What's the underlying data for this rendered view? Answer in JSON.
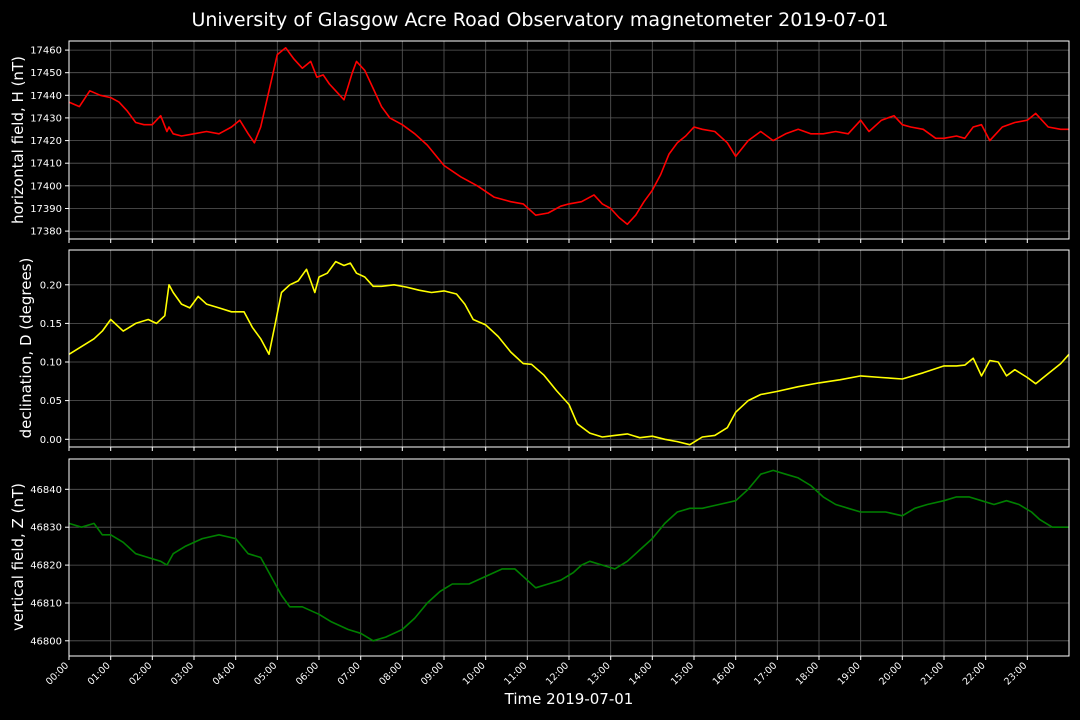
{
  "title": "University of Glasgow Acre Road Observatory magnetometer 2019-07-01",
  "xlabel": "Time 2019-07-01",
  "colors": {
    "background": "#000000",
    "grid": "#5a5a5a",
    "axes": "#ffffff"
  },
  "chart_data": [
    {
      "type": "line",
      "ylabel": "horizontal field, H (nT)",
      "color": "#ff0000",
      "xlim": [
        0,
        24
      ],
      "ylim": [
        17376.5,
        17464
      ],
      "yticks": [
        17380,
        17390,
        17400,
        17410,
        17420,
        17430,
        17440,
        17450,
        17460
      ],
      "grid": true,
      "x": [
        0,
        0.25,
        0.5,
        0.75,
        1.0,
        1.2,
        1.4,
        1.6,
        1.8,
        2.0,
        2.2,
        2.35,
        2.4,
        2.5,
        2.7,
        3.0,
        3.3,
        3.6,
        3.9,
        4.1,
        4.3,
        4.45,
        4.6,
        4.8,
        5.0,
        5.2,
        5.4,
        5.6,
        5.8,
        5.95,
        6.1,
        6.25,
        6.4,
        6.6,
        6.8,
        6.9,
        7.1,
        7.3,
        7.5,
        7.7,
        8.0,
        8.3,
        8.6,
        9.0,
        9.4,
        9.8,
        10.2,
        10.6,
        10.9,
        11.2,
        11.5,
        11.8,
        12.0,
        12.3,
        12.6,
        12.8,
        13.0,
        13.2,
        13.4,
        13.6,
        13.8,
        14.0,
        14.2,
        14.4,
        14.6,
        14.8,
        15.0,
        15.2,
        15.5,
        15.8,
        16.0,
        16.3,
        16.6,
        16.9,
        17.2,
        17.5,
        17.8,
        18.1,
        18.4,
        18.7,
        19.0,
        19.2,
        19.5,
        19.8,
        20.0,
        20.2,
        20.5,
        20.8,
        21.0,
        21.3,
        21.5,
        21.7,
        21.9,
        22.1,
        22.4,
        22.7,
        23.0,
        23.2,
        23.5,
        23.8,
        24.0
      ],
      "y": [
        17437,
        17435,
        17442,
        17440,
        17439,
        17437,
        17433,
        17428,
        17427,
        17427,
        17431,
        17424,
        17426,
        17423,
        17422,
        17423,
        17424,
        17423,
        17426,
        17429,
        17423,
        17419,
        17426,
        17442,
        17458,
        17461,
        17456,
        17452,
        17455,
        17448,
        17449,
        17445,
        17442,
        17438,
        17450,
        17455,
        17451,
        17443,
        17435,
        17430,
        17427,
        17423,
        17418,
        17409,
        17404,
        17400,
        17395,
        17393,
        17392,
        17387,
        17388,
        17391,
        17392,
        17393,
        17396,
        17392,
        17390,
        17386,
        17383,
        17387,
        17393,
        17398,
        17405,
        17414,
        17419,
        17422,
        17426,
        17425,
        17424,
        17419,
        17413,
        17420,
        17424,
        17420,
        17423,
        17425,
        17423,
        17423,
        17424,
        17423,
        17429,
        17424,
        17429,
        17431,
        17427,
        17426,
        17425,
        17421,
        17421,
        17422,
        17421,
        17426,
        17427,
        17420,
        17426,
        17428,
        17429,
        17432,
        17426,
        17425,
        17425
      ]
    },
    {
      "type": "line",
      "ylabel": "declination, D (degrees)",
      "color": "#ffff00",
      "xlim": [
        0,
        24
      ],
      "ylim": [
        -0.01,
        0.245
      ],
      "yticks": [
        "0.00",
        "0.05",
        "0.10",
        "0.15",
        "0.20"
      ],
      "grid": true,
      "x": [
        0,
        0.3,
        0.6,
        0.8,
        1.0,
        1.3,
        1.6,
        1.9,
        2.1,
        2.3,
        2.4,
        2.5,
        2.7,
        2.9,
        3.1,
        3.3,
        3.6,
        3.9,
        4.2,
        4.4,
        4.6,
        4.8,
        4.95,
        5.1,
        5.3,
        5.5,
        5.7,
        5.9,
        6.0,
        6.2,
        6.4,
        6.6,
        6.75,
        6.9,
        7.1,
        7.3,
        7.5,
        7.8,
        8.1,
        8.4,
        8.7,
        9.0,
        9.3,
        9.5,
        9.7,
        10.0,
        10.3,
        10.6,
        10.9,
        11.1,
        11.4,
        11.7,
        12.0,
        12.2,
        12.5,
        12.8,
        13.1,
        13.4,
        13.7,
        14.0,
        14.3,
        14.6,
        14.9,
        15.2,
        15.5,
        15.8,
        16.0,
        16.3,
        16.6,
        17.0,
        17.5,
        18.0,
        18.5,
        19.0,
        19.5,
        20.0,
        20.5,
        21.0,
        21.3,
        21.5,
        21.7,
        21.9,
        22.1,
        22.3,
        22.5,
        22.7,
        23.0,
        23.2,
        23.5,
        23.8,
        24.0
      ],
      "y": [
        0.11,
        0.12,
        0.13,
        0.14,
        0.155,
        0.14,
        0.15,
        0.155,
        0.15,
        0.16,
        0.2,
        0.19,
        0.175,
        0.17,
        0.185,
        0.175,
        0.17,
        0.165,
        0.165,
        0.145,
        0.13,
        0.11,
        0.15,
        0.19,
        0.2,
        0.205,
        0.22,
        0.19,
        0.21,
        0.215,
        0.23,
        0.225,
        0.228,
        0.215,
        0.21,
        0.198,
        0.198,
        0.2,
        0.197,
        0.193,
        0.19,
        0.192,
        0.188,
        0.175,
        0.155,
        0.148,
        0.133,
        0.113,
        0.098,
        0.097,
        0.083,
        0.063,
        0.045,
        0.02,
        0.008,
        0.003,
        0.005,
        0.007,
        0.002,
        0.004,
        0.0,
        -0.003,
        -0.007,
        0.003,
        0.005,
        0.015,
        0.035,
        0.05,
        0.058,
        0.062,
        0.068,
        0.073,
        0.077,
        0.082,
        0.08,
        0.078,
        0.086,
        0.095,
        0.095,
        0.096,
        0.105,
        0.082,
        0.102,
        0.1,
        0.082,
        0.09,
        0.08,
        0.072,
        0.085,
        0.098,
        0.11
      ]
    },
    {
      "type": "line",
      "ylabel": "vertical field, Z (nT)",
      "color": "#008000",
      "xlim": [
        0,
        24
      ],
      "ylim": [
        46796,
        46848
      ],
      "yticks": [
        46800,
        46810,
        46820,
        46830,
        46840
      ],
      "grid": true,
      "x": [
        0,
        0.3,
        0.6,
        0.8,
        1.0,
        1.3,
        1.6,
        1.9,
        2.2,
        2.35,
        2.5,
        2.8,
        3.2,
        3.6,
        4.0,
        4.3,
        4.6,
        4.9,
        5.1,
        5.3,
        5.6,
        6.0,
        6.3,
        6.7,
        7.0,
        7.3,
        7.6,
        8.0,
        8.3,
        8.6,
        8.9,
        9.2,
        9.6,
        10.0,
        10.4,
        10.7,
        11.0,
        11.2,
        11.5,
        11.8,
        12.1,
        12.3,
        12.5,
        12.8,
        13.1,
        13.4,
        13.7,
        14.0,
        14.3,
        14.6,
        14.9,
        15.2,
        15.6,
        16.0,
        16.3,
        16.6,
        16.9,
        17.2,
        17.5,
        17.8,
        18.1,
        18.4,
        18.7,
        19.0,
        19.3,
        19.6,
        20.0,
        20.3,
        20.6,
        21.0,
        21.3,
        21.6,
        21.9,
        22.2,
        22.5,
        22.8,
        23.1,
        23.3,
        23.6,
        24.0
      ],
      "y": [
        46831,
        46830,
        46831,
        46828,
        46828,
        46826,
        46823,
        46822,
        46821,
        46820,
        46823,
        46825,
        46827,
        46828,
        46827,
        46823,
        46822,
        46816,
        46812,
        46809,
        46809,
        46807,
        46805,
        46803,
        46802,
        46800,
        46801,
        46803,
        46806,
        46810,
        46813,
        46815,
        46815,
        46817,
        46819,
        46819,
        46816,
        46814,
        46815,
        46816,
        46818,
        46820,
        46821,
        46820,
        46819,
        46821,
        46824,
        46827,
        46831,
        46834,
        46835,
        46835,
        46836,
        46837,
        46840,
        46844,
        46845,
        46844,
        46843,
        46841,
        46838,
        46836,
        46835,
        46834,
        46834,
        46834,
        46833,
        46835,
        46836,
        46837,
        46838,
        46838,
        46837,
        46836,
        46837,
        46836,
        46834,
        46832,
        46830,
        46830
      ]
    }
  ],
  "time_ticks": [
    "00:00",
    "01:00",
    "02:00",
    "03:00",
    "04:00",
    "05:00",
    "06:00",
    "07:00",
    "08:00",
    "09:00",
    "10:00",
    "11:00",
    "12:00",
    "13:00",
    "14:00",
    "15:00",
    "16:00",
    "17:00",
    "18:00",
    "19:00",
    "20:00",
    "21:00",
    "22:00",
    "23:00"
  ]
}
